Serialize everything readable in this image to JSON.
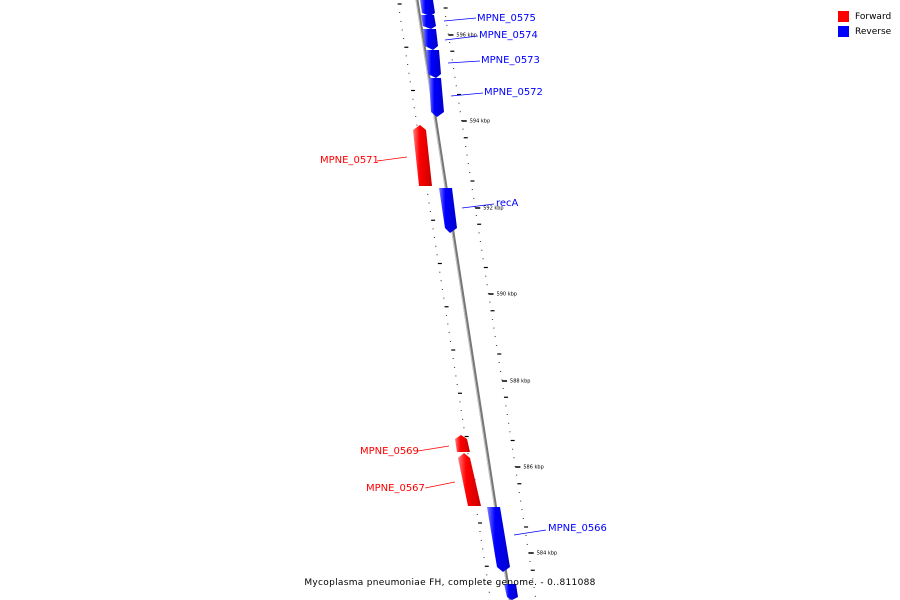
{
  "legend": {
    "forward_label": "Forward",
    "reverse_label": "Reverse",
    "forward_color": "#ff0000",
    "reverse_color": "#0000ff"
  },
  "caption": "Mycoplasma pneumoniae FH, complete genome. - 0..811088",
  "genes": [
    {
      "name": "MPNE_0575",
      "strand": "reverse"
    },
    {
      "name": "MPNE_0574",
      "strand": "reverse"
    },
    {
      "name": "MPNE_0573",
      "strand": "reverse"
    },
    {
      "name": "MPNE_0572",
      "strand": "reverse"
    },
    {
      "name": "MPNE_0571",
      "strand": "forward"
    },
    {
      "name": "recA",
      "strand": "reverse"
    },
    {
      "name": "MPNE_0569",
      "strand": "forward"
    },
    {
      "name": "MPNE_0567",
      "strand": "forward"
    },
    {
      "name": "MPNE_0566",
      "strand": "reverse"
    }
  ],
  "ticks": [
    "596 kbp",
    "594 kbp",
    "592 kbp",
    "590 kbp",
    "588 kbp",
    "586 kbp",
    "584 kbp"
  ]
}
